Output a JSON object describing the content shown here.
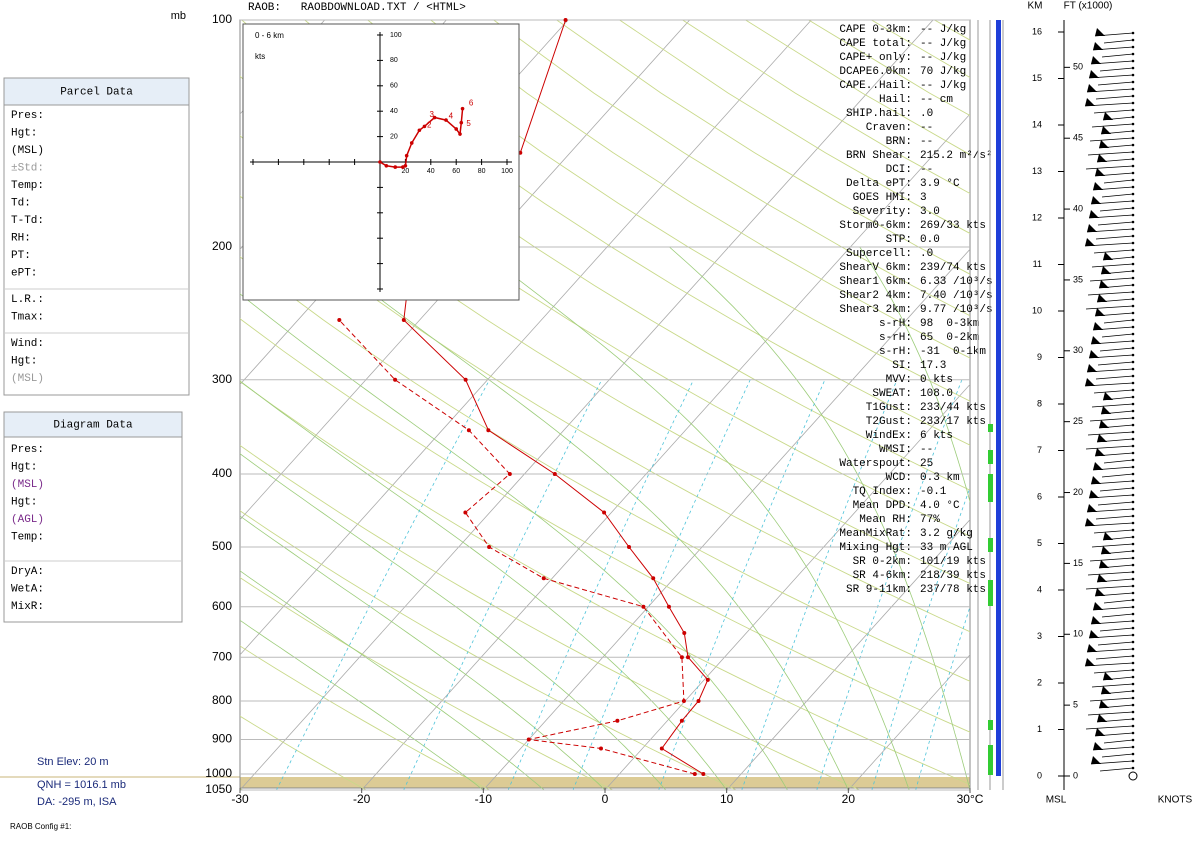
{
  "header": "RAOB:   RAOBDOWNLOAD.TXT / <HTML>",
  "pressure_unit": "mb",
  "parcel_panel": {
    "title": "Parcel Data",
    "groups": [
      [
        "Pres:",
        "Hgt:",
        "(MSL)",
        "±Std:",
        "Temp:",
        "Td:",
        "T-Td:",
        "RH:",
        "PT:",
        "ePT:"
      ],
      [
        "L.R.:",
        "Tmax:"
      ],
      [
        "Wind:",
        "Hgt:",
        "(MSL)"
      ]
    ]
  },
  "diagram_panel": {
    "title": "Diagram Data",
    "groups": [
      [
        "Pres:",
        "Hgt:",
        "(MSL)",
        "Hgt:",
        "(AGL)",
        "Temp:"
      ],
      [
        "DryA:",
        "WetA:",
        "MixR:"
      ]
    ]
  },
  "station": [
    "Stn Elev: 20 m",
    "QNH = 1016.1 mb",
    "DA: -295 m, ISA"
  ],
  "config": "RAOB Config #1:",
  "chart_data": {
    "type": "skewt",
    "temperature": {
      "color": "#cc0000",
      "pressure": [
        1000,
        925,
        850,
        800,
        750,
        700,
        650,
        600,
        550,
        500,
        450,
        400,
        350,
        300,
        250,
        200,
        150,
        100
      ],
      "values": [
        6.9,
        1.6,
        1.2,
        1.1,
        0.3,
        -3.0,
        -5.1,
        -8.3,
        -11.7,
        -16,
        -20.6,
        -27.5,
        -36.2,
        -41.8,
        -51.3,
        -56,
        -54.1,
        -60.2
      ]
    },
    "dewpoint": {
      "color": "#cc0000",
      "pressure": [
        1000,
        925,
        900,
        850,
        800,
        700,
        600,
        550,
        500,
        450,
        400,
        350,
        300,
        250
      ],
      "values": [
        6.2,
        -3.4,
        -10,
        -4.1,
        -0.1,
        -3.5,
        -10.4,
        -20.7,
        -27.5,
        -32,
        -31.2,
        -37.8,
        -47.6,
        -56.6
      ]
    },
    "xlim": [
      -30,
      30
    ],
    "xticks": [
      -30,
      -20,
      -10,
      0,
      10,
      20,
      {
        "value": 30,
        "label": "30°C"
      }
    ],
    "ylim": [
      100,
      1050
    ],
    "yticks": [
      100,
      200,
      300,
      400,
      500,
      600,
      700,
      800,
      900,
      1000,
      1050
    ],
    "grid": true
  },
  "hodograph": {
    "title": "0 - 6 km",
    "unit": "kts",
    "color": "#cc0000",
    "u": [
      0,
      5,
      12,
      18,
      20,
      21,
      25,
      31,
      35,
      43,
      52,
      60,
      63,
      64,
      65
    ],
    "v": [
      0,
      -3,
      -4,
      -4,
      -3,
      5,
      15,
      25,
      28,
      35,
      33,
      26,
      22,
      31,
      42
    ],
    "markers": [
      {
        "label": "2",
        "u": 37,
        "v": 29
      },
      {
        "label": "3",
        "u": 39,
        "v": 37
      },
      {
        "label": "4",
        "u": 54,
        "v": 36
      },
      {
        "label": "5",
        "u": 68,
        "v": 30
      },
      {
        "label": "6",
        "u": 70,
        "v": 46
      }
    ],
    "xticks": [
      20,
      40,
      60,
      80,
      100
    ],
    "yticks": [
      20,
      40,
      60,
      80,
      100
    ],
    "lim": 100
  },
  "indices": [
    [
      "CAPE 0-3km:",
      "-- J/kg"
    ],
    [
      "CAPE total:",
      "-- J/kg"
    ],
    [
      "CAPE+ only:",
      "-- J/kg"
    ],
    [
      "DCAPE6.0km:",
      "70 J/kg"
    ],
    [
      "CAPE..Hail:",
      "-- J/kg"
    ],
    [
      "Hail:",
      "-- cm"
    ],
    [
      "SHIP.hail:",
      ".0"
    ],
    [
      "Craven:",
      "--"
    ],
    [
      "BRN:",
      "--"
    ],
    [
      "BRN Shear:",
      "215.2 m²/s²"
    ],
    [
      "DCI:",
      "--"
    ],
    [
      "Delta ePT:",
      "3.9 °C"
    ],
    [
      "GOES HMI:",
      "3"
    ],
    [
      "Severity:",
      "3.0"
    ],
    [
      "Storm0-6km:",
      "269/33 kts"
    ],
    [
      "STP:",
      "0.0"
    ],
    [
      "Supercell:",
      ".0"
    ],
    [
      "ShearV 6km:",
      "239/74 kts"
    ],
    [
      "Shear1 6km:",
      "6.33 /10³/s"
    ],
    [
      "Shear2 4km:",
      "7.40 /10³/s"
    ],
    [
      "Shear3 2km:",
      "9.77 /10³/s"
    ],
    [
      "s-rH:",
      "98  0-3km"
    ],
    [
      "s-rH:",
      "65  0-2km"
    ],
    [
      "s-rH:",
      "-31  0-1km"
    ],
    [
      "SI:",
      "17.3"
    ],
    [
      "MVV:",
      "0 kts"
    ],
    [
      "SWEAT:",
      "108.0"
    ],
    [
      "T1Gust:",
      "233/44 kts"
    ],
    [
      "T2Gust:",
      "233/17 kts"
    ],
    [
      "WindEx:",
      "6 kts"
    ],
    [
      "WMSI:",
      "--"
    ],
    [
      "Waterspout:",
      "25"
    ],
    [
      "WCD:",
      "0.3 km"
    ],
    [
      "TQ Index:",
      "-0.1"
    ],
    [
      "Mean DPD:",
      "4.0 °C"
    ],
    [
      "Mean RH:",
      "77%"
    ],
    [
      "MeanMixRat:",
      "3.2 g/kg"
    ],
    [
      "Mixing Hgt:",
      "33 m AGL"
    ],
    [
      "SR 0-2km:",
      "101/19 kts"
    ],
    [
      "SR 4-6km:",
      "218/39 kts"
    ],
    [
      "SR 9-11km:",
      "237/78 kts"
    ]
  ],
  "height_axis": {
    "title": "KM",
    "ticks": [
      0,
      1,
      2,
      3,
      4,
      5,
      6,
      7,
      8,
      9,
      10,
      11,
      12,
      13,
      14,
      15,
      16
    ],
    "ft_title": "FT (x1000)",
    "ft_ticks": [
      0,
      5,
      10,
      15,
      20,
      25,
      30,
      35,
      40,
      45,
      50
    ],
    "bottom_left": "MSL",
    "bottom_right": "KNOTS"
  }
}
